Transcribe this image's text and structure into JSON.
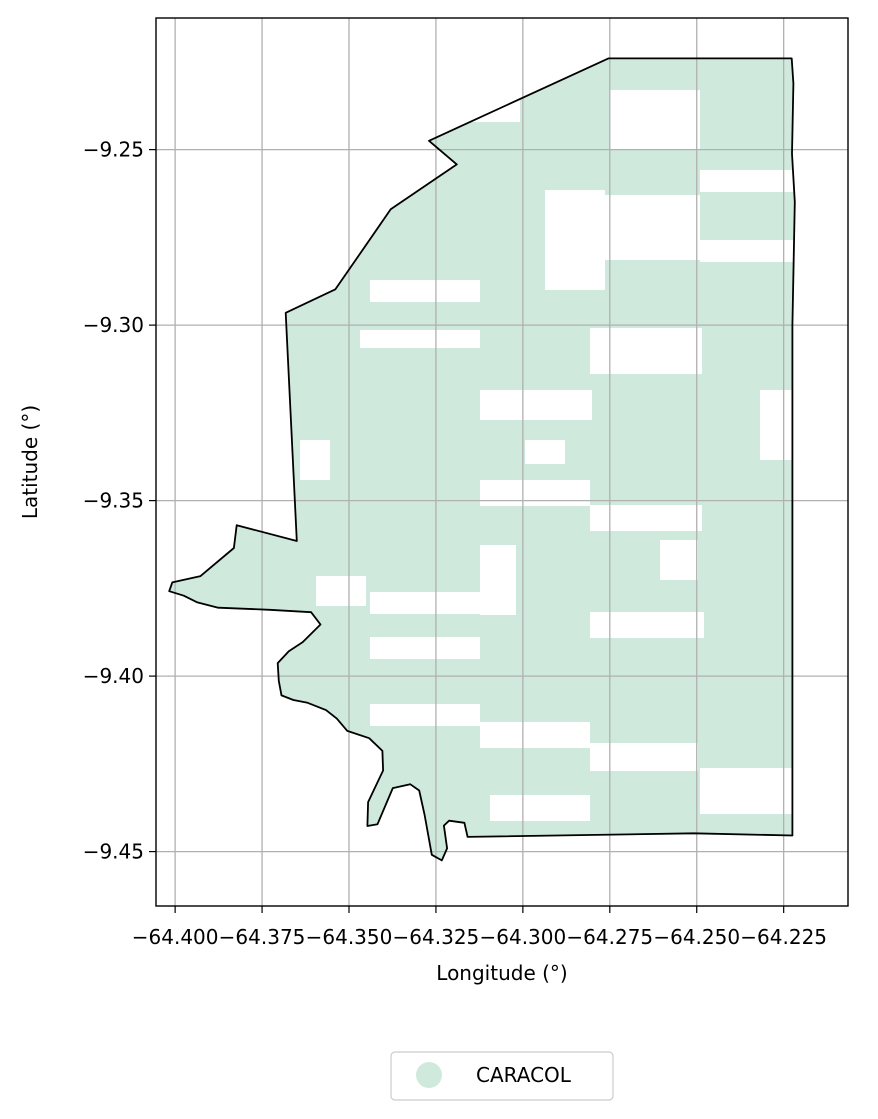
{
  "chart_data": {
    "type": "map",
    "xlabel": "Longitude (°)",
    "ylabel": "Latitude (°)",
    "xlim": [
      -64.4055,
      -64.2065
    ],
    "ylim": [
      -9.4655,
      -9.2125
    ],
    "x_ticks": [
      -64.4,
      -64.375,
      -64.35,
      -64.325,
      -64.3,
      -64.275,
      -64.25,
      -64.225
    ],
    "x_tick_labels": [
      "−64.400",
      "−64.375",
      "−64.350",
      "−64.325",
      "−64.300",
      "−64.275",
      "−64.250",
      "−64.225"
    ],
    "y_ticks": [
      -9.25,
      -9.3,
      -9.35,
      -9.4,
      -9.45
    ],
    "y_tick_labels": [
      "−9.25",
      "−9.30",
      "−9.35",
      "−9.40",
      "−9.45"
    ],
    "grid": true,
    "legend_position": "bottom-center",
    "colors": {
      "fill": "#cfeadd",
      "boundary": "#000000",
      "grid": "#b0b0b0"
    },
    "series": [
      {
        "name": "CARACOL",
        "color": "#cfeadd",
        "marker": "circle"
      }
    ],
    "boundary": [
      [
        -64.2754,
        -9.224
      ],
      [
        -64.2227,
        -9.224
      ],
      [
        -64.2222,
        -9.2312
      ],
      [
        -64.2226,
        -9.2512
      ],
      [
        -64.2218,
        -9.2649
      ],
      [
        -64.2225,
        -9.3001
      ],
      [
        -64.2225,
        -9.4454
      ],
      [
        -64.2509,
        -9.4448
      ],
      [
        -64.3159,
        -9.4458
      ],
      [
        -64.3168,
        -9.4418
      ],
      [
        -64.3212,
        -9.4412
      ],
      [
        -64.3227,
        -9.4426
      ],
      [
        -64.3218,
        -9.4491
      ],
      [
        -64.3233,
        -9.4525
      ],
      [
        -64.3262,
        -9.4509
      ],
      [
        -64.3283,
        -9.4394
      ],
      [
        -64.3298,
        -9.4326
      ],
      [
        -64.3324,
        -9.4308
      ],
      [
        -64.3374,
        -9.4319
      ],
      [
        -64.3418,
        -9.4422
      ],
      [
        -64.3447,
        -9.4427
      ],
      [
        -64.3445,
        -9.4359
      ],
      [
        -64.3402,
        -9.4269
      ],
      [
        -64.3404,
        -9.4213
      ],
      [
        -64.3442,
        -9.4177
      ],
      [
        -64.3505,
        -9.4156
      ],
      [
        -64.3535,
        -9.4121
      ],
      [
        -64.3566,
        -9.4097
      ],
      [
        -64.3619,
        -9.4076
      ],
      [
        -64.366,
        -9.4068
      ],
      [
        -64.3694,
        -9.4055
      ],
      [
        -64.3702,
        -9.4014
      ],
      [
        -64.3705,
        -9.3963
      ],
      [
        -64.3673,
        -9.3929
      ],
      [
        -64.3633,
        -9.3903
      ],
      [
        -64.3582,
        -9.3853
      ],
      [
        -64.3609,
        -9.3818
      ],
      [
        -64.3728,
        -9.3811
      ],
      [
        -64.3876,
        -9.3805
      ],
      [
        -64.3936,
        -9.379
      ],
      [
        -64.3975,
        -9.3771
      ],
      [
        -64.4017,
        -9.3758
      ],
      [
        -64.4008,
        -9.3733
      ],
      [
        -64.3927,
        -9.3715
      ],
      [
        -64.3831,
        -9.3635
      ],
      [
        -64.3823,
        -9.357
      ],
      [
        -64.365,
        -9.3615
      ],
      [
        -64.3682,
        -9.2965
      ],
      [
        -64.3539,
        -9.2898
      ],
      [
        -64.338,
        -9.267
      ],
      [
        -64.319,
        -9.2542
      ],
      [
        -64.327,
        -9.2475
      ],
      [
        -64.2754,
        -9.224
      ]
    ]
  },
  "legend": {
    "label": "CARACOL"
  }
}
